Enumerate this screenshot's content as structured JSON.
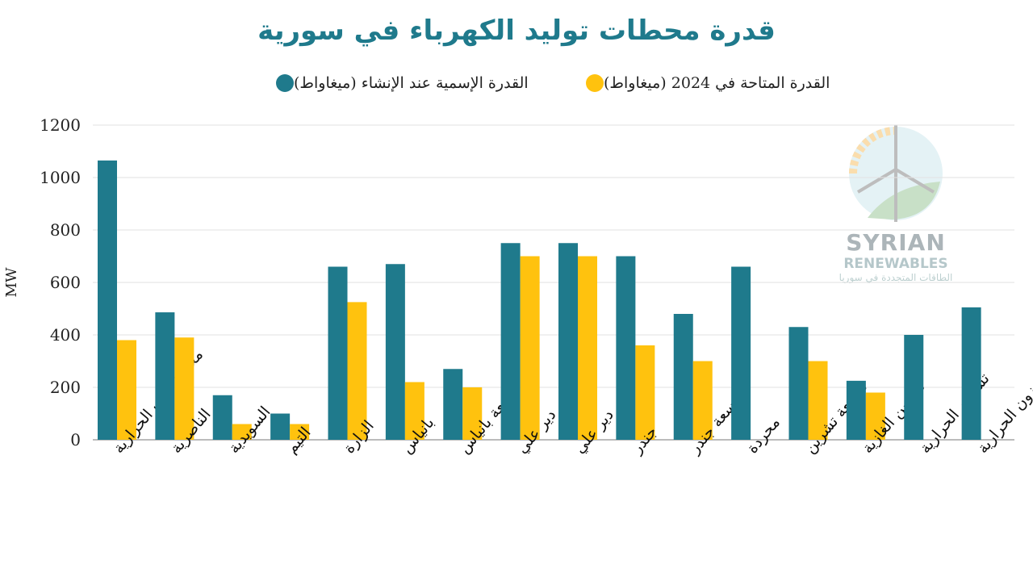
{
  "chart_data": {
    "type": "bar",
    "title": "قدرة محطات توليد الكهرباء في سورية",
    "ylabel": "MW",
    "xlabel": "",
    "ylim": [
      0,
      1200
    ],
    "yticks": [
      0,
      200,
      400,
      600,
      800,
      1000,
      1200
    ],
    "grid": true,
    "legend_placement": "top",
    "categories": [
      "محطة حلب الحرارية",
      "الناصرية",
      "السويدية",
      "التيم",
      "الزارة",
      "بانياس",
      "توسعة بانياس",
      "توسعى دير علي",
      "دير علي",
      "جندر",
      "توسعة جندر",
      "محردة",
      "توسعة تشرين",
      "تشرين الغازية",
      "تشرين الحرارية",
      "زيزون الحرارية"
    ],
    "series": [
      {
        "name": "القدرة الإسمية عند الإنشاء (ميغاواط)",
        "color": "#1f7a8c",
        "values": [
          1065,
          486,
          170,
          100,
          660,
          670,
          270,
          750,
          750,
          700,
          480,
          660,
          430,
          225,
          400,
          505
        ]
      },
      {
        "name": "القدرة المتاحة في 2024 (ميغاواط)",
        "color": "#ffc20e",
        "values": [
          380,
          390,
          60,
          60,
          525,
          220,
          200,
          700,
          700,
          360,
          300,
          null,
          300,
          180,
          null,
          null
        ]
      }
    ]
  },
  "watermark": {
    "line1": "SYRIAN",
    "line2": "RENEWABLES",
    "line3": "الطاقات المتجددة في سوريا"
  }
}
